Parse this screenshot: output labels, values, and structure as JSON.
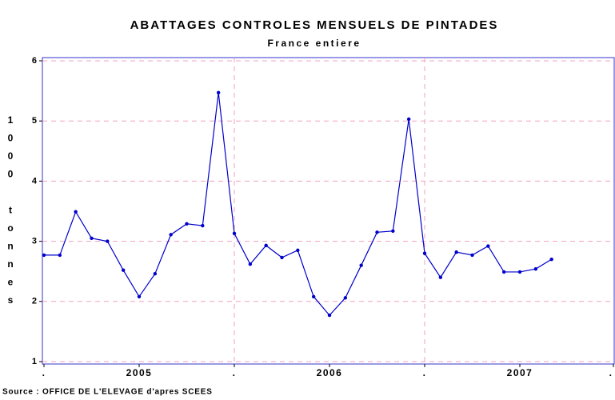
{
  "chart_data": {
    "type": "line",
    "title": "ABATTAGES CONTROLES MENSUELS DE PINTADES",
    "subtitle": "France entiere",
    "y_label": "1000 tonnes",
    "source": "Source : OFFICE DE L'ELEVAGE d'apres SCEES",
    "x": [
      0,
      1,
      2,
      3,
      4,
      5,
      6,
      7,
      8,
      9,
      10,
      11,
      12,
      13,
      14,
      15,
      16,
      17,
      18,
      19,
      20,
      21,
      22,
      23,
      24,
      25,
      26,
      27,
      28,
      29,
      30,
      31,
      32
    ],
    "series": [
      {
        "name": "Pintades",
        "color": "#0000cc",
        "values": [
          2.77,
          2.77,
          3.49,
          3.05,
          3.0,
          2.52,
          2.08,
          2.46,
          3.11,
          3.29,
          3.26,
          5.47,
          3.13,
          2.62,
          2.93,
          2.73,
          2.85,
          2.08,
          1.77,
          2.06,
          2.6,
          3.15,
          3.17,
          5.03,
          2.8,
          2.4,
          2.82,
          2.77,
          2.92,
          2.49,
          2.49,
          2.54,
          2.7
        ]
      }
    ],
    "xlim": [
      0,
      36
    ],
    "xticks": [
      {
        "value": 0,
        "label": "."
      },
      {
        "value": 6,
        "label": "2005"
      },
      {
        "value": 12,
        "label": "."
      },
      {
        "value": 18,
        "label": "2006"
      },
      {
        "value": 24,
        "label": "."
      },
      {
        "value": 30,
        "label": "2007"
      },
      {
        "value": 36,
        "label": "."
      }
    ],
    "ylim": [
      1,
      6
    ],
    "yticks": [
      1,
      2,
      3,
      4,
      5,
      6
    ],
    "grid": true,
    "grid_color": "#f0a0c0",
    "frame_color": "#3333cc"
  }
}
